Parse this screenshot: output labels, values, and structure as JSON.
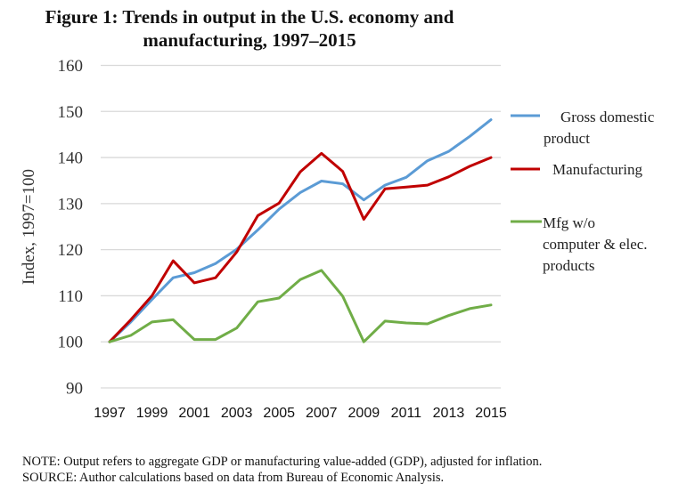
{
  "chart_data": {
    "type": "line",
    "title": "Figure 1: Trends in output in the U.S. economy and manufacturing, 1997–2015",
    "title_lines": [
      "Figure 1: Trends in output in the U.S. economy and",
      "manufacturing, 1997–2015"
    ],
    "xlabel": "",
    "ylabel": "Index, 1997=100",
    "ylim": [
      90,
      160
    ],
    "yticks": [
      90,
      100,
      110,
      120,
      130,
      140,
      150,
      160
    ],
    "x": [
      1997,
      1998,
      1999,
      2000,
      2001,
      2002,
      2003,
      2004,
      2005,
      2006,
      2007,
      2008,
      2009,
      2010,
      2011,
      2012,
      2013,
      2014,
      2015
    ],
    "xtick_labels": [
      "1997",
      "1999",
      "2001",
      "2003",
      "2005",
      "2007",
      "2009",
      "2011",
      "2013",
      "2015"
    ],
    "grid": true,
    "legend_position": "right",
    "series": [
      {
        "name": "Gross domestic product",
        "legend_lines": [
          "Gross domestic",
          "product"
        ],
        "color": "#5B9BD5",
        "values": [
          100,
          104.3,
          109.2,
          113.9,
          115.0,
          117.0,
          120.1,
          124.3,
          128.8,
          132.4,
          134.9,
          134.3,
          130.8,
          134.0,
          135.7,
          139.3,
          141.3,
          144.6,
          148.2
        ]
      },
      {
        "name": "Manufacturing",
        "legend_lines": [
          "Manufacturing"
        ],
        "color": "#C00000",
        "values": [
          100,
          104.8,
          110.0,
          117.6,
          112.8,
          113.9,
          119.5,
          127.4,
          130.1,
          136.9,
          140.9,
          137.0,
          126.6,
          133.2,
          133.6,
          134.0,
          135.8,
          138.1,
          140.0
        ]
      },
      {
        "name": "Mfg w/o computer & elec. products",
        "legend_lines": [
          "Mfg w/o",
          "computer & elec.",
          "products"
        ],
        "color": "#70AD47",
        "values": [
          100,
          101.4,
          104.3,
          104.8,
          100.5,
          100.5,
          103.0,
          108.7,
          109.5,
          113.5,
          115.5,
          109.9,
          100.0,
          104.5,
          104.1,
          103.9,
          105.7,
          107.2,
          108.0
        ]
      }
    ]
  },
  "notes": {
    "note": "NOTE: Output refers to aggregate GDP or manufacturing value-added (GDP), adjusted for inflation.",
    "source": "SOURCE: Author calculations based on data from Bureau of Economic Analysis."
  }
}
